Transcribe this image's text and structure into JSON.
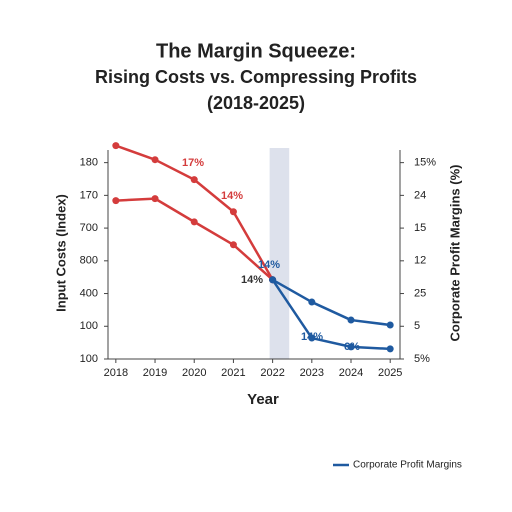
{
  "chart_data": {
    "type": "line",
    "title": [
      "The Margin Squeeze:",
      "Rising Costs vs. Compressing Profits",
      "(2018-2025)"
    ],
    "xlabel": "Year",
    "ylabel": "Input Costs (Index)",
    "y2label": "Corporate Profit Margins (%)",
    "x": [
      2018,
      2019,
      2020,
      2021,
      2022,
      2023,
      2024,
      2025
    ],
    "xlim": [
      2017.8,
      2025.25
    ],
    "xticks": [
      2018,
      2019,
      2020,
      2021,
      2022,
      2023,
      2024,
      2025
    ],
    "ylim": [
      0,
      6.6
    ],
    "yticks": [
      {
        "value": 6,
        "label": "180"
      },
      {
        "value": 5,
        "label": "170"
      },
      {
        "value": 4,
        "label": "700"
      },
      {
        "value": 3,
        "label": "800"
      },
      {
        "value": 2,
        "label": "400"
      },
      {
        "value": 1,
        "label": "100"
      },
      {
        "value": 0,
        "label": "100"
      }
    ],
    "y2lim": [
      0,
      6.6
    ],
    "y2ticks": [
      {
        "value": 6,
        "label": "15%"
      },
      {
        "value": 5,
        "label": "24"
      },
      {
        "value": 4,
        "label": "15"
      },
      {
        "value": 3,
        "label": "12"
      },
      {
        "value": 2,
        "label": "25"
      },
      {
        "value": 1,
        "label": "5"
      },
      {
        "value": 0,
        "label": "5%"
      }
    ],
    "shade_x": [
      2022,
      2022.5
    ],
    "series": [
      {
        "color": "#d43c3c",
        "values": [
          6.52,
          6.09,
          5.48,
          4.5,
          2.42,
          null,
          null,
          null
        ]
      },
      {
        "color": "#d43c3c",
        "values": [
          4.84,
          4.9,
          4.19,
          3.49,
          2.42,
          null,
          null,
          null
        ]
      },
      {
        "name": "Corporate Profit Margins",
        "color": "#1f5aa0",
        "axis": "y2",
        "values": [
          null,
          null,
          null,
          null,
          2.42,
          1.74,
          1.19,
          1.04
        ]
      },
      {
        "color": "#1f5aa0",
        "axis": "y2",
        "values": [
          null,
          null,
          null,
          null,
          2.42,
          0.64,
          0.37,
          0.31
        ]
      }
    ],
    "annotations": [
      "17%",
      "14%",
      "14%",
      "14%",
      "14%",
      "6%"
    ]
  }
}
